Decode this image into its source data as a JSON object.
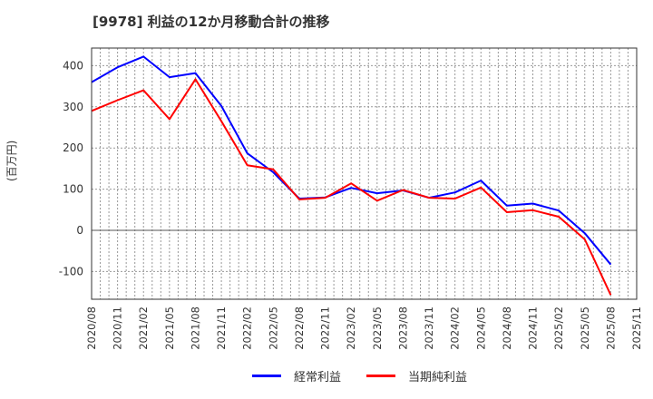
{
  "title": "[9978]  利益の12か月移動合計の推移",
  "y_axis_label": "(百万円)",
  "legend": [
    {
      "label": "経常利益",
      "color": "#0000ff"
    },
    {
      "label": "当期純利益",
      "color": "#ff0000"
    }
  ],
  "chart_data": {
    "type": "line",
    "title": "[9978]  利益の12か月移動合計の推移",
    "xlabel": "",
    "ylabel": "(百万円)",
    "ylim": [
      -170,
      440
    ],
    "yticks": [
      -100,
      0,
      100,
      200,
      300,
      400
    ],
    "grid": true,
    "legend_position": "bottom",
    "x": [
      "2020/08",
      "2020/11",
      "2021/02",
      "2021/05",
      "2021/08",
      "2021/11",
      "2022/02",
      "2022/05",
      "2022/08",
      "2022/11",
      "2023/02",
      "2023/05",
      "2023/08",
      "2023/11",
      "2024/02",
      "2024/05",
      "2024/08",
      "2024/11",
      "2025/02",
      "2025/05",
      "2025/08",
      "2025/11"
    ],
    "series": [
      {
        "name": "経常利益",
        "color": "#0000ff",
        "values": [
          360,
          396,
          422,
          372,
          382,
          302,
          187,
          141,
          77,
          80,
          103,
          90,
          97,
          79,
          92,
          121,
          60,
          65,
          48,
          -7,
          -83,
          null
        ]
      },
      {
        "name": "当期純利益",
        "color": "#ff0000",
        "values": [
          290,
          316,
          340,
          270,
          367,
          265,
          158,
          148,
          75,
          79,
          114,
          72,
          98,
          79,
          77,
          104,
          44,
          49,
          33,
          -22,
          -157,
          null
        ]
      }
    ]
  }
}
